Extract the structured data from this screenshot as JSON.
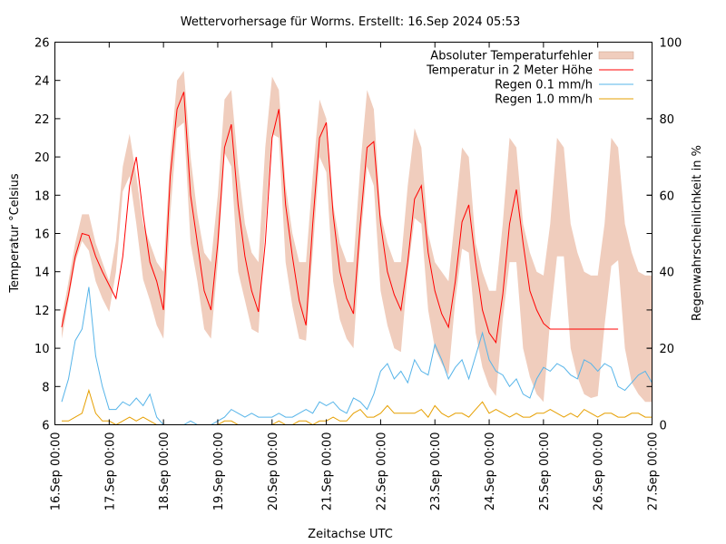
{
  "chart_data": {
    "type": "line",
    "title": "Wettervorhersage für Worms. Erstellt: 16.Sep 2024 05:53",
    "xlabel": "Zeitachse UTC",
    "ylabel": "Temperatur °Celsius",
    "y2label": "Regenwahrscheinlichkeit in %",
    "xlim": [
      "16.Sep 00:00",
      "27.Sep 00:00"
    ],
    "ylim": [
      6,
      26
    ],
    "y2lim": [
      0,
      100
    ],
    "grid": false,
    "legend_position": "top-right",
    "x_ticks": [
      "16.Sep 00:00",
      "17.Sep 00:00",
      "18.Sep 00:00",
      "19.Sep 00:00",
      "20.Sep 00:00",
      "21.Sep 00:00",
      "22.Sep 00:00",
      "23.Sep 00:00",
      "24.Sep 00:00",
      "25.Sep 00:00",
      "26.Sep 00:00",
      "27.Sep 00:00"
    ],
    "y_ticks": [
      6,
      8,
      10,
      12,
      14,
      16,
      18,
      20,
      22,
      24,
      26
    ],
    "y2_ticks": [
      0,
      20,
      40,
      60,
      80,
      100
    ],
    "time_unit": "Stunden ab 16.Sep 00:00 UTC",
    "series": [
      {
        "name": "Absoluter Temperaturfehler",
        "kind": "band",
        "axis": "y",
        "color": "#f0cdbd",
        "x": [
          3,
          6,
          9,
          12,
          15,
          18,
          21,
          24,
          27,
          30,
          33,
          36,
          39,
          42,
          45,
          48,
          51,
          54,
          57,
          60,
          63,
          66,
          69,
          72,
          75,
          78,
          81,
          84,
          87,
          90,
          93,
          96,
          99,
          102,
          105,
          108,
          111,
          114,
          117,
          120,
          123,
          126,
          129,
          132,
          135,
          138,
          141,
          144,
          147,
          150,
          153,
          156,
          159,
          162,
          165,
          168,
          171,
          174,
          177,
          180,
          183,
          186,
          189,
          192,
          195,
          198,
          201,
          204,
          207,
          210,
          213,
          216,
          219,
          222,
          225,
          228,
          231,
          234,
          237,
          240,
          243,
          246,
          249,
          252,
          255,
          258,
          261,
          264
        ],
        "low": [
          10.5,
          12.5,
          14.5,
          15.6,
          15.1,
          13.5,
          12.6,
          11.9,
          14.0,
          18.2,
          19.0,
          16.5,
          13.6,
          12.5,
          11.2,
          10.5,
          17.0,
          21.5,
          21.8,
          15.5,
          13.5,
          11.0,
          10.5,
          14.5,
          20.2,
          19.5,
          14.0,
          12.5,
          11.0,
          10.8,
          16.5,
          21.2,
          21.0,
          14.5,
          12.2,
          10.5,
          10.4,
          15.0,
          20.0,
          19.2,
          13.5,
          11.5,
          10.5,
          10.0,
          15.5,
          19.5,
          18.5,
          13.0,
          11.2,
          10.0,
          9.8,
          14.0,
          16.8,
          16.5,
          12.0,
          10.0,
          9.2,
          8.6,
          12.5,
          15.2,
          15.0,
          10.8,
          9.0,
          8.0,
          7.5,
          11.5,
          14.5,
          14.5,
          10.0,
          8.5,
          7.6,
          7.2,
          11.5,
          14.8,
          14.8,
          10.0,
          8.5,
          7.6,
          7.4,
          7.5,
          11.2,
          14.3,
          14.6,
          10.0,
          8.2,
          7.6,
          7.2,
          7.2
        ],
        "high": [
          11.5,
          13.5,
          15.5,
          17.0,
          17.0,
          15.5,
          14.5,
          13.5,
          15.6,
          19.5,
          21.2,
          19.0,
          16.5,
          15.5,
          14.5,
          14.0,
          20.0,
          24.0,
          24.5,
          20.0,
          17.0,
          15.0,
          14.5,
          18.0,
          23.0,
          23.5,
          19.5,
          16.5,
          15.0,
          14.5,
          20.5,
          24.2,
          23.5,
          18.5,
          16.0,
          14.5,
          14.5,
          19.0,
          23.0,
          22.0,
          17.5,
          15.5,
          14.5,
          14.5,
          19.5,
          23.5,
          22.5,
          17.0,
          15.5,
          14.5,
          14.5,
          18.5,
          21.5,
          20.5,
          16.0,
          14.5,
          14.0,
          13.5,
          17.0,
          20.5,
          20.0,
          15.5,
          14.0,
          13.0,
          13.0,
          16.5,
          21.0,
          20.5,
          16.5,
          15.0,
          14.0,
          13.8,
          16.5,
          21.0,
          20.5,
          16.5,
          15.0,
          14.0,
          13.8,
          13.8,
          16.5,
          21.0,
          20.5,
          16.5,
          15.0,
          14.0,
          13.8,
          13.8
        ]
      },
      {
        "name": "Temperatur in 2 Meter Höhe",
        "kind": "line",
        "axis": "y",
        "color": "#ff0000",
        "x": [
          3,
          6,
          9,
          12,
          15,
          18,
          21,
          24,
          27,
          30,
          33,
          36,
          39,
          42,
          45,
          48,
          51,
          54,
          57,
          60,
          63,
          66,
          69,
          72,
          75,
          78,
          81,
          84,
          87,
          90,
          93,
          96,
          99,
          102,
          105,
          108,
          111,
          114,
          117,
          120,
          123,
          126,
          129,
          132,
          135,
          138,
          141,
          144,
          147,
          150,
          153,
          156,
          159,
          162,
          165,
          168,
          171,
          174,
          177,
          180,
          183,
          186,
          189,
          192,
          195,
          198,
          201,
          204,
          207,
          210,
          213,
          216,
          219,
          222,
          225,
          228,
          231,
          234,
          237,
          240,
          243,
          246,
          249
        ],
        "values": [
          11.1,
          12.8,
          14.8,
          16.0,
          15.9,
          14.8,
          14.0,
          13.3,
          12.6,
          14.8,
          18.5,
          20.0,
          17.0,
          14.5,
          13.5,
          12.0,
          19.0,
          22.5,
          23.4,
          18.0,
          15.5,
          13.0,
          12.0,
          15.5,
          20.5,
          21.7,
          17.5,
          14.8,
          13.0,
          11.9,
          15.5,
          21.0,
          22.5,
          17.5,
          14.8,
          12.5,
          11.2,
          16.5,
          21.0,
          21.8,
          17.0,
          14.0,
          12.6,
          11.8,
          16.5,
          20.5,
          20.8,
          16.5,
          14.0,
          12.8,
          12.0,
          14.5,
          17.8,
          18.5,
          15.0,
          13.0,
          11.8,
          11.1,
          13.5,
          16.6,
          17.5,
          14.5,
          12.0,
          10.8,
          10.3,
          12.8,
          16.5,
          18.3,
          15.5,
          13.0,
          12.0,
          11.3,
          11.0,
          11.0,
          11.0,
          11.0,
          11.0,
          11.0,
          11.0,
          11.0,
          11.0,
          11.0,
          11.0
        ]
      },
      {
        "name": "Regen 0.1 mm/h",
        "kind": "line",
        "axis": "y2",
        "color": "#56b4e9",
        "x": [
          3,
          6,
          9,
          12,
          15,
          18,
          21,
          24,
          27,
          30,
          33,
          36,
          39,
          42,
          45,
          48,
          51,
          54,
          57,
          60,
          63,
          66,
          69,
          72,
          75,
          78,
          81,
          84,
          87,
          90,
          93,
          96,
          99,
          102,
          105,
          108,
          111,
          114,
          117,
          120,
          123,
          126,
          129,
          132,
          135,
          138,
          141,
          144,
          147,
          150,
          153,
          156,
          159,
          162,
          165,
          168,
          171,
          174,
          177,
          180,
          183,
          186,
          189,
          192,
          195,
          198,
          201,
          204,
          207,
          210,
          213,
          216,
          219,
          222,
          225,
          228,
          231,
          234,
          237,
          240,
          243,
          246,
          249,
          252,
          255,
          258,
          261,
          264
        ],
        "values": [
          6,
          12,
          22,
          25,
          36,
          18,
          10,
          4,
          4,
          6,
          5,
          7,
          5,
          8,
          2,
          0,
          0,
          0,
          0,
          1,
          0,
          0,
          0,
          1,
          2,
          4,
          3,
          2,
          3,
          2,
          2,
          2,
          3,
          2,
          2,
          3,
          4,
          3,
          6,
          5,
          6,
          4,
          3,
          7,
          6,
          4,
          8,
          14,
          16,
          12,
          14,
          11,
          17,
          14,
          13,
          21,
          17,
          12,
          15,
          17,
          12,
          18,
          24,
          17,
          14,
          13,
          10,
          12,
          8,
          7,
          12,
          15,
          14,
          16,
          15,
          13,
          12,
          17,
          16,
          14,
          16,
          15,
          10,
          9,
          11,
          13,
          14,
          11
        ]
      },
      {
        "name": "Regen 1.0 mm/h",
        "kind": "line",
        "axis": "y2",
        "color": "#e69f00",
        "x": [
          3,
          6,
          9,
          12,
          15,
          18,
          21,
          24,
          27,
          30,
          33,
          36,
          39,
          42,
          45,
          48,
          51,
          54,
          57,
          60,
          63,
          66,
          69,
          72,
          75,
          78,
          81,
          84,
          87,
          90,
          93,
          96,
          99,
          102,
          105,
          108,
          111,
          114,
          117,
          120,
          123,
          126,
          129,
          132,
          135,
          138,
          141,
          144,
          147,
          150,
          153,
          156,
          159,
          162,
          165,
          168,
          171,
          174,
          177,
          180,
          183,
          186,
          189,
          192,
          195,
          198,
          201,
          204,
          207,
          210,
          213,
          216,
          219,
          222,
          225,
          228,
          231,
          234,
          237,
          240,
          243,
          246,
          249,
          252,
          255,
          258,
          261,
          264
        ],
        "values": [
          1,
          1,
          2,
          3,
          9,
          3,
          1,
          1,
          0,
          1,
          2,
          1,
          2,
          1,
          0,
          0,
          0,
          0,
          0,
          0,
          0,
          0,
          0,
          0,
          1,
          1,
          0,
          0,
          0,
          0,
          0,
          0,
          1,
          0,
          0,
          1,
          1,
          0,
          1,
          1,
          2,
          1,
          1,
          3,
          4,
          2,
          2,
          3,
          5,
          3,
          3,
          3,
          3,
          4,
          2,
          5,
          3,
          2,
          3,
          3,
          2,
          4,
          6,
          3,
          4,
          3,
          2,
          3,
          2,
          2,
          3,
          3,
          4,
          3,
          2,
          3,
          2,
          4,
          3,
          2,
          3,
          3,
          2,
          2,
          3,
          3,
          2,
          2
        ]
      }
    ]
  }
}
